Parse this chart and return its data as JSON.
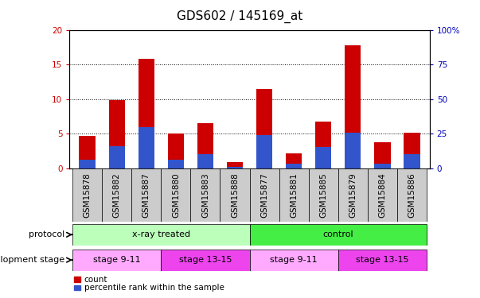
{
  "title": "GDS602 / 145169_at",
  "samples": [
    "GSM15878",
    "GSM15882",
    "GSM15887",
    "GSM15880",
    "GSM15883",
    "GSM15888",
    "GSM15877",
    "GSM15881",
    "GSM15885",
    "GSM15879",
    "GSM15884",
    "GSM15886"
  ],
  "red_values": [
    4.7,
    9.8,
    15.8,
    5.0,
    6.5,
    0.85,
    11.5,
    2.2,
    6.8,
    17.8,
    3.8,
    5.2
  ],
  "blue_values": [
    6.0,
    16.0,
    30.0,
    6.5,
    10.5,
    1.0,
    24.0,
    3.5,
    15.5,
    26.0,
    3.5,
    10.0
  ],
  "ylim_left": [
    0,
    20
  ],
  "ylim_right": [
    0,
    100
  ],
  "yticks_left": [
    0,
    5,
    10,
    15,
    20
  ],
  "yticks_right": [
    0,
    25,
    50,
    75,
    100
  ],
  "bar_width": 0.55,
  "red_color": "#cc0000",
  "blue_color": "#3355cc",
  "grid_color": "#000000",
  "tick_label_color_left": "#cc0000",
  "tick_label_color_right": "#0000bb",
  "xticklabel_bg": "#cccccc",
  "protocol_row": {
    "label": "protocol",
    "groups": [
      {
        "text": "x-ray treated",
        "start": 0,
        "end": 6,
        "color": "#bbffbb"
      },
      {
        "text": "control",
        "start": 6,
        "end": 12,
        "color": "#44ee44"
      }
    ]
  },
  "stage_row": {
    "label": "development stage",
    "groups": [
      {
        "text": "stage 9-11",
        "start": 0,
        "end": 3,
        "color": "#ffaaff"
      },
      {
        "text": "stage 13-15",
        "start": 3,
        "end": 6,
        "color": "#ee44ee"
      },
      {
        "text": "stage 9-11",
        "start": 6,
        "end": 9,
        "color": "#ffaaff"
      },
      {
        "text": "stage 13-15",
        "start": 9,
        "end": 12,
        "color": "#ee44ee"
      }
    ]
  },
  "legend": [
    {
      "label": "count",
      "color": "#cc0000"
    },
    {
      "label": "percentile rank within the sample",
      "color": "#3355cc"
    }
  ],
  "title_fontsize": 11,
  "tick_fontsize": 7.5,
  "label_fontsize": 8,
  "annotation_fontsize": 8,
  "xticklabel_rotation": 90
}
